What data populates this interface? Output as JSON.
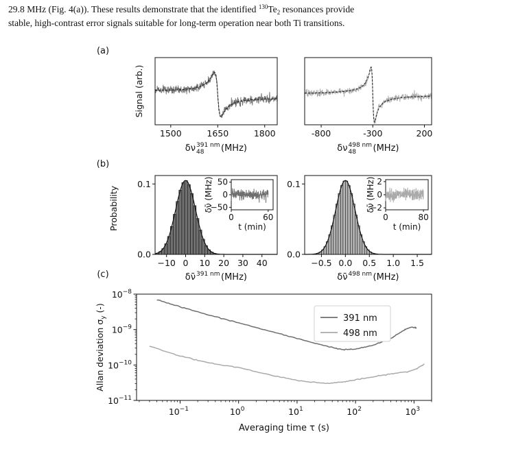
{
  "paragraph": {
    "line1_pre": "29.8 MHz (Fig. 4(a)). These results demonstrate that the identified ",
    "line1_sup": "130",
    "line1_mid": "Te",
    "line1_sub": "2",
    "line1_post": " resonances provide",
    "line2": "stable, high-contrast error signals suitable for long-term operation near both Ti transitions."
  },
  "figure": {
    "panel_labels": [
      "(a)",
      "(b)",
      "(c)"
    ],
    "colors": {
      "dark": "#6e6e6e",
      "light": "#aaaaaa",
      "bar_dark": "#707070",
      "bar_light": "#b4b4b4",
      "axis": "#111111",
      "fit": "#222222"
    }
  },
  "chart_data": [
    {
      "id": "a_left",
      "type": "line",
      "xlabel_sym": "δν",
      "xlabel_sup": "391 nm",
      "xlabel_sub": "48",
      "xlabel_unit": " (MHz)",
      "ylabel": "Signal (arb.)",
      "xlim": [
        1450,
        1840
      ],
      "xticks": [
        1500,
        1650,
        1800
      ],
      "xtick_labels": [
        "1500",
        "1650",
        "1800"
      ],
      "resonance_center": 1650,
      "series": [
        {
          "style": "dispersive signal with noise, dashed fit"
        }
      ]
    },
    {
      "id": "a_right",
      "type": "line",
      "xlabel_sym": "δν",
      "xlabel_sup": "498 nm",
      "xlabel_sub": "48",
      "xlabel_unit": " (MHz)",
      "xlim": [
        -960,
        270
      ],
      "xticks": [
        -800,
        -300,
        200
      ],
      "xtick_labels": [
        "-800",
        "-300",
        "200"
      ],
      "resonance_center": -300,
      "series": [
        {
          "style": "dispersive signal with noise, dashed fit"
        }
      ]
    },
    {
      "id": "b_left",
      "type": "bar",
      "ylabel": "Probability",
      "xlabel_sym": "δν̄",
      "xlabel_sup": "391 nm",
      "xlabel_unit": " (MHz)",
      "xlim": [
        -16,
        48
      ],
      "ylim": [
        0,
        0.112
      ],
      "xticks": [
        -10,
        0,
        10,
        20,
        30,
        40
      ],
      "xtick_labels": [
        "−10",
        "0",
        "10",
        "20",
        "30",
        "40"
      ],
      "yticks": [
        0,
        0.1
      ],
      "ytick_labels": [
        "0.0",
        "0.1"
      ],
      "bin_width": 1.5,
      "gaussian": {
        "mean": 0,
        "sigma": 5.2,
        "peak": 0.105
      },
      "inset": {
        "ylabel": "δν̄ (MHz)",
        "xlabel": "t (min)",
        "xlim": [
          0,
          68
        ],
        "ylim": [
          -60,
          60
        ],
        "xticks": [
          0,
          60
        ],
        "xtick_labels": [
          "0",
          "60"
        ],
        "yticks": [
          50,
          0,
          -50
        ],
        "ytick_labels": [
          "50",
          "0",
          "−50"
        ],
        "noise_amplitude": 11
      }
    },
    {
      "id": "b_right",
      "type": "bar",
      "xlabel_sym": "δν̄",
      "xlabel_sup": "498 nm",
      "xlabel_unit": " (MHz)",
      "xlim": [
        -0.85,
        1.8
      ],
      "ylim": [
        0,
        0.112
      ],
      "xticks": [
        -0.5,
        0,
        0.5,
        1.0,
        1.5
      ],
      "xtick_labels": [
        "−0.5",
        "0.0",
        "0.5",
        "1.0",
        "1.5"
      ],
      "yticks": [
        0,
        0.1
      ],
      "ytick_labels": [
        "0.0",
        "0.1"
      ],
      "bin_width": 0.05,
      "gaussian": {
        "mean": 0,
        "sigma": 0.2,
        "peak": 0.105
      },
      "inset": {
        "ylabel": "δν̄ (MHz)",
        "xlabel": "t (min)",
        "xlim": [
          0,
          90
        ],
        "ylim": [
          -2.3,
          2.3
        ],
        "xticks": [
          0,
          80
        ],
        "xtick_labels": [
          "0",
          "80"
        ],
        "yticks": [
          2,
          0,
          -2
        ],
        "ytick_labels": [
          "2",
          "0",
          "−2"
        ],
        "noise_amplitude": 0.45
      }
    },
    {
      "id": "c",
      "type": "line",
      "xscale": "log",
      "yscale": "log",
      "xlabel": "Averaging time τ (s)",
      "ylabel": "Allan deviation σ",
      "ylabel_sub": "y",
      "ylabel_unit": " (-)",
      "xlim": [
        0.018,
        2000
      ],
      "ylim": [
        1e-11,
        1e-08
      ],
      "xticks": [
        0.1,
        1,
        10,
        100,
        1000
      ],
      "xtick_labels": [
        {
          "base": "10",
          "exp": "−1"
        },
        {
          "base": "10",
          "exp": "0"
        },
        {
          "base": "10",
          "exp": "1"
        },
        {
          "base": "10",
          "exp": "2"
        },
        {
          "base": "10",
          "exp": "3"
        }
      ],
      "yticks": [
        1e-11,
        1e-10,
        1e-09,
        1e-08
      ],
      "ytick_labels": [
        {
          "base": "10",
          "exp": "−11"
        },
        {
          "base": "10",
          "exp": "−10"
        },
        {
          "base": "10",
          "exp": "−9"
        },
        {
          "base": "10",
          "exp": "−8"
        }
      ],
      "legend_position": "upper right",
      "series": [
        {
          "name": "391 nm",
          "x": [
            0.04,
            0.1,
            0.3,
            1,
            3,
            10,
            30,
            60,
            100,
            200,
            400,
            700,
            900,
            1100
          ],
          "y": [
            7e-09,
            4.4e-09,
            2.6e-09,
            1.55e-09,
            9.5e-10,
            5.6e-10,
            3.5e-10,
            2.7e-10,
            2.8e-10,
            3.6e-10,
            5.6e-10,
            1e-09,
            1.18e-09,
            1.12e-09
          ]
        },
        {
          "name": "498 nm",
          "x": [
            0.03,
            0.1,
            0.3,
            1,
            3,
            10,
            30,
            60,
            100,
            200,
            400,
            800,
            1100,
            1500
          ],
          "y": [
            3.4e-10,
            1.8e-10,
            1.15e-10,
            8.5e-11,
            5.5e-11,
            3.7e-11,
            3e-11,
            3.3e-11,
            3.8e-11,
            4.6e-11,
            5.6e-11,
            6.5e-11,
            7.8e-11,
            1.08e-10
          ]
        }
      ]
    }
  ]
}
